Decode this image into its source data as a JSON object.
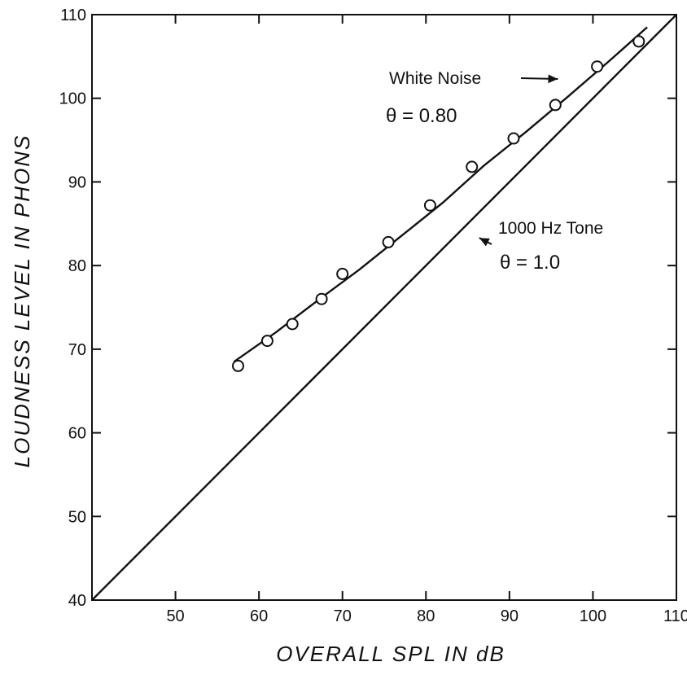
{
  "chart_data": {
    "type": "line",
    "title": "",
    "xlabel": "OVERALL SPL IN dB",
    "ylabel": "LOUDNESS LEVEL IN PHONS",
    "xlim": [
      40,
      110
    ],
    "ylim": [
      40,
      110
    ],
    "xticks": [
      50,
      60,
      70,
      80,
      90,
      100,
      110
    ],
    "yticks": [
      40,
      50,
      60,
      70,
      80,
      90,
      100,
      110
    ],
    "x_tick_labels": [
      "50",
      "60",
      "70",
      "80",
      "90",
      "100",
      "110"
    ],
    "y_tick_labels": [
      "40",
      "50",
      "60",
      "70",
      "80",
      "90",
      "100",
      "110"
    ],
    "corner_label": "40",
    "grid": false,
    "series": [
      {
        "name": "1000 Hz Tone",
        "style": "line",
        "x": [
          40,
          110
        ],
        "y": [
          40,
          110
        ]
      },
      {
        "name": "White Noise",
        "style": "line",
        "x": [
          57,
          62,
          67,
          72,
          77,
          82,
          87,
          92,
          97,
          102,
          106.5
        ],
        "y": [
          68.5,
          72.0,
          75.8,
          79.5,
          83.5,
          87.5,
          92.0,
          96.0,
          100.2,
          104.5,
          108.5
        ]
      },
      {
        "name": "White Noise data",
        "style": "markers",
        "marker": "open-circle",
        "x": [
          57.5,
          61.0,
          64.0,
          67.5,
          70.0,
          75.5,
          80.5,
          85.5,
          90.5,
          95.5,
          100.5,
          105.5
        ],
        "y": [
          68.0,
          71.0,
          73.0,
          76.0,
          79.0,
          82.8,
          87.2,
          91.8,
          95.2,
          99.2,
          103.8,
          106.8
        ]
      }
    ],
    "annotations": [
      {
        "id": "white_noise",
        "text": "White Noise",
        "theta": "θ = 0.80",
        "arrow_to": [
          96,
          102.5
        ]
      },
      {
        "id": "tone",
        "text": "1000 Hz Tone",
        "theta": "θ = 1.0",
        "arrow_to": [
          86,
          83.5
        ]
      }
    ]
  }
}
